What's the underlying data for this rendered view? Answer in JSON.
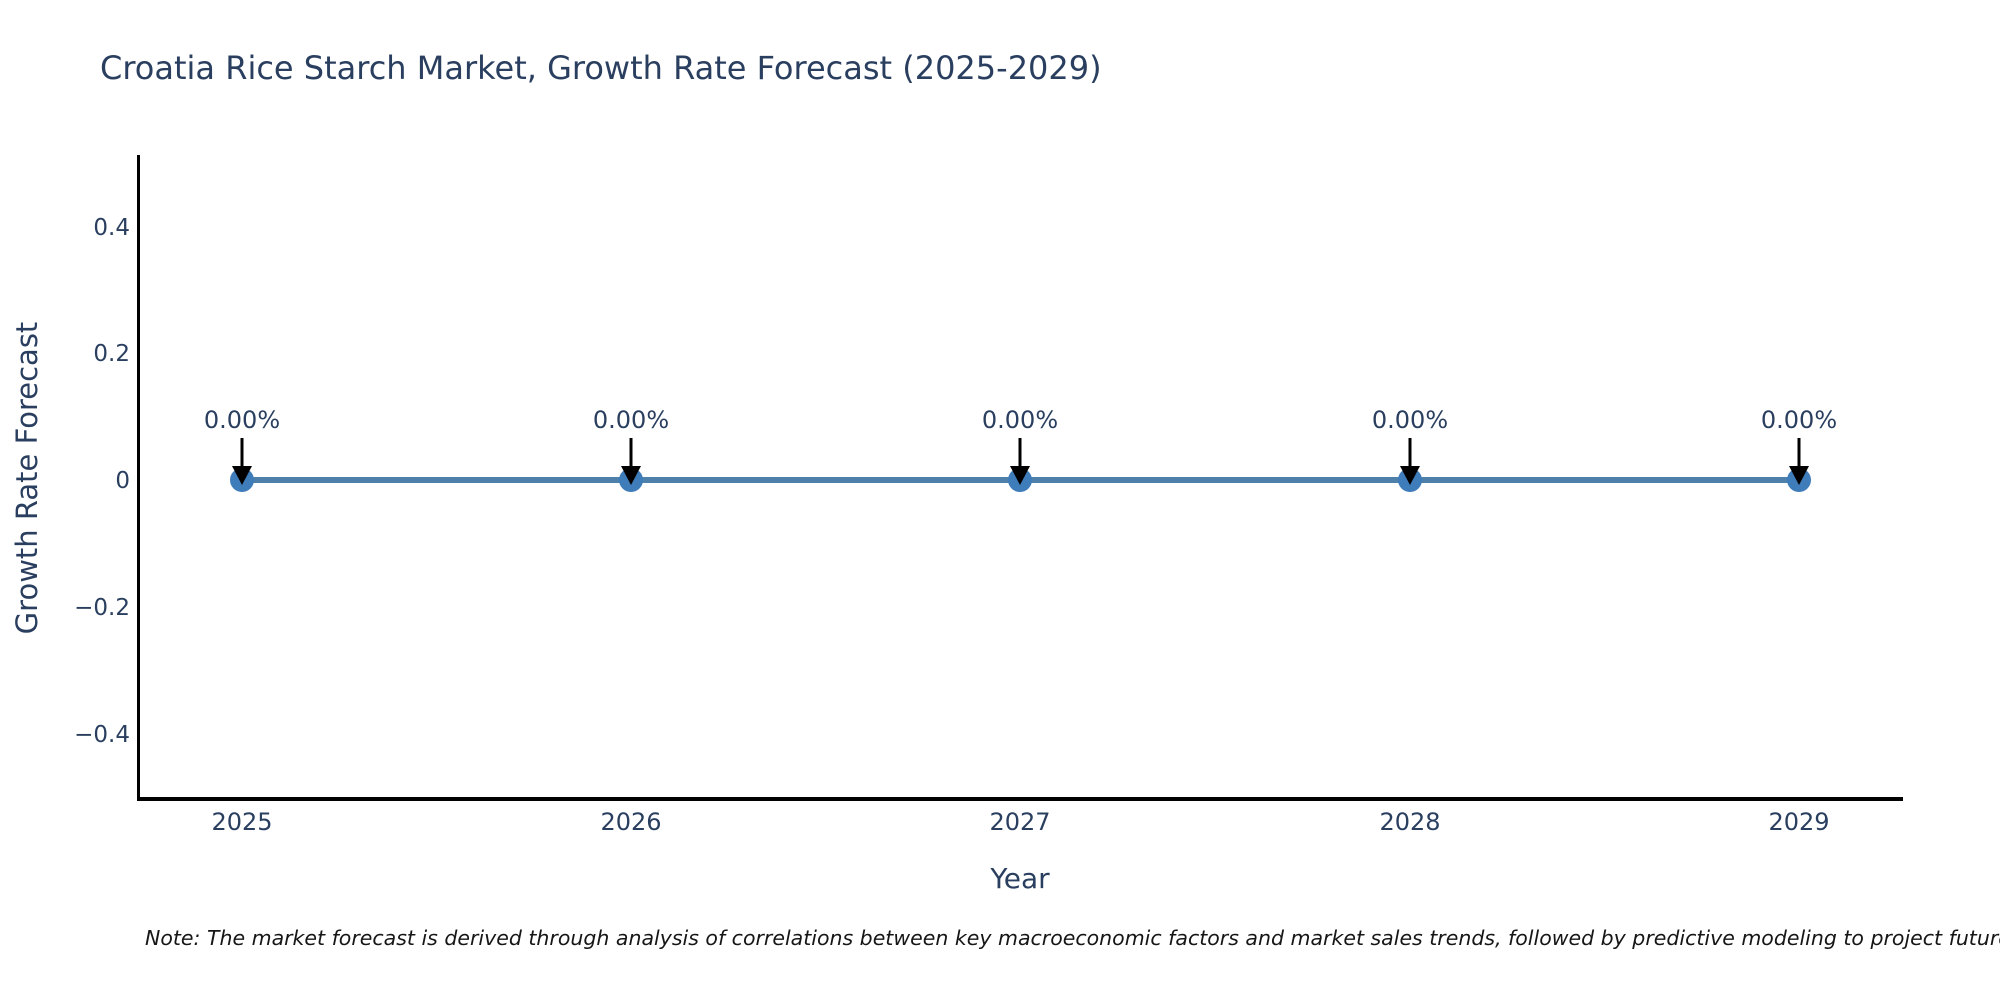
{
  "title": "Croatia Rice Starch Market, Growth Rate Forecast (2025-2029)",
  "note": "Note: The market forecast is derived through analysis of correlations between key macroeconomic factors and market sales trends, followed by predictive modeling to project future sa",
  "chart_data": {
    "type": "line",
    "title": "Croatia Rice Starch Market, Growth Rate Forecast (2025-2029)",
    "xlabel": "Year",
    "ylabel": "Growth Rate Forecast",
    "x": [
      2025,
      2026,
      2027,
      2028,
      2029
    ],
    "categories": [
      "2025",
      "2026",
      "2027",
      "2028",
      "2029"
    ],
    "series": [
      {
        "name": "Growth Rate Forecast",
        "values": [
          0,
          0,
          0,
          0,
          0
        ]
      }
    ],
    "point_labels": [
      "0.00%",
      "0.00%",
      "0.00%",
      "0.00%",
      "0.00%"
    ],
    "x_ticks": [
      "2025",
      "2026",
      "2027",
      "2028",
      "2029"
    ],
    "y_ticks": [
      "0.4",
      "0.2",
      "0",
      "−0.2",
      "−0.4"
    ],
    "ylim": [
      -0.5,
      0.5
    ],
    "grid": false,
    "legend_position": "none",
    "marker_shape": "circle",
    "annotation_arrows": "down",
    "colors": {
      "line": "#4d80ab",
      "marker": "#3e7cba",
      "arrow": "#000000",
      "axis": "#000000",
      "chart_text": "#2a3f5f",
      "note_text": "#161616",
      "background": "#ffffff"
    }
  }
}
